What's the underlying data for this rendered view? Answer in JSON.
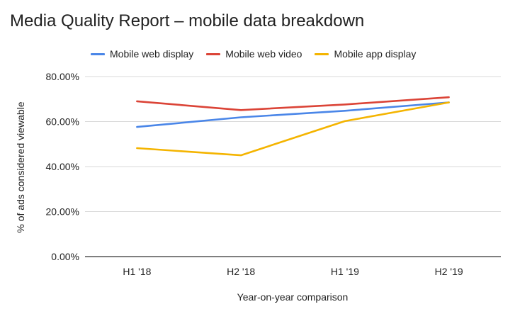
{
  "chart_data": {
    "type": "line",
    "title": "Media Quality Report – mobile data breakdown",
    "xlabel": "Year-on-year comparison",
    "ylabel": "% of ads considered viewable",
    "categories": [
      "H1 '18",
      "H2 '18",
      "H1 '19",
      "H2 '19"
    ],
    "ylim": [
      0,
      80
    ],
    "yticks": [
      "0.00%",
      "20.00%",
      "40.00%",
      "60.00%",
      "80.00%"
    ],
    "grid": true,
    "legend_position": "top",
    "series": [
      {
        "name": "Mobile web display",
        "color": "#4a86e8",
        "values": [
          57.6,
          61.9,
          64.8,
          68.5
        ]
      },
      {
        "name": "Mobile web video",
        "color": "#db4437",
        "values": [
          69.0,
          65.1,
          67.6,
          70.8
        ]
      },
      {
        "name": "Mobile app display",
        "color": "#f4b400",
        "values": [
          48.2,
          45.0,
          60.2,
          68.5
        ]
      }
    ]
  }
}
